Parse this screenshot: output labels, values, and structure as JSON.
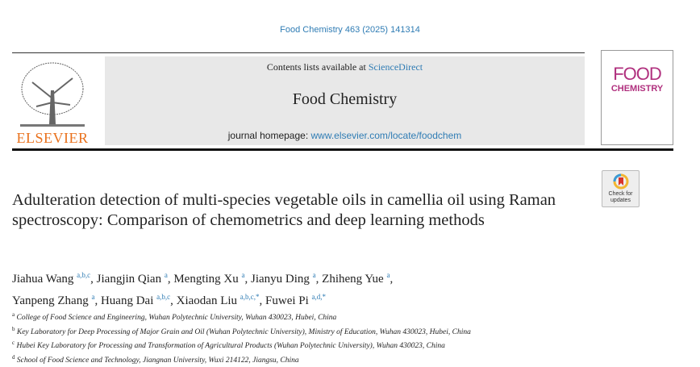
{
  "citation": "Food Chemistry 463 (2025) 141314",
  "header": {
    "contents_prefix": "Contents lists available at ",
    "contents_link": "ScienceDirect",
    "journal_name": "Food Chemistry",
    "homepage_prefix": "journal homepage: ",
    "homepage_link": "www.elsevier.com/locate/foodchem",
    "publisher_logo": "ELSEVIER",
    "cover_title_1": "FOOD",
    "cover_title_2": "CHEMISTRY",
    "badge": "Check for updates"
  },
  "article": {
    "title": "Adulteration detection of multi-species vegetable oils in camellia oil using Raman spectroscopy: Comparison of chemometrics and deep learning methods",
    "authors": [
      {
        "name": "Jiahua Wang",
        "aff": "a,b,c"
      },
      {
        "name": "Jiangjin Qian",
        "aff": "a"
      },
      {
        "name": "Mengting Xu",
        "aff": "a"
      },
      {
        "name": "Jianyu Ding",
        "aff": "a"
      },
      {
        "name": "Zhiheng Yue",
        "aff": "a"
      },
      {
        "name": "Yanpeng Zhang",
        "aff": "a"
      },
      {
        "name": "Huang Dai",
        "aff": "a,b,c"
      },
      {
        "name": "Xiaodan Liu",
        "aff": "a,b,c,*"
      },
      {
        "name": "Fuwei Pi",
        "aff": "a,d,*"
      }
    ],
    "affiliations": [
      {
        "key": "a",
        "text": "College of Food Science and Engineering, Wuhan Polytechnic University, Wuhan 430023, Hubei, China"
      },
      {
        "key": "b",
        "text": "Key Laboratory for Deep Processing of Major Grain and Oil (Wuhan Polytechnic University), Ministry of Education, Wuhan 430023, Hubei, China"
      },
      {
        "key": "c",
        "text": "Hubei Key Laboratory for Processing and Transformation of Agricultural Products (Wuhan Polytechnic University), Wuhan 430023, China"
      },
      {
        "key": "d",
        "text": "School of Food Science and Technology, Jiangnan University, Wuxi 214122, Jiangsu, China"
      }
    ]
  },
  "colors": {
    "link": "#2f7cb4",
    "elsevier": "#e9711c",
    "cover": "#b0307e"
  }
}
